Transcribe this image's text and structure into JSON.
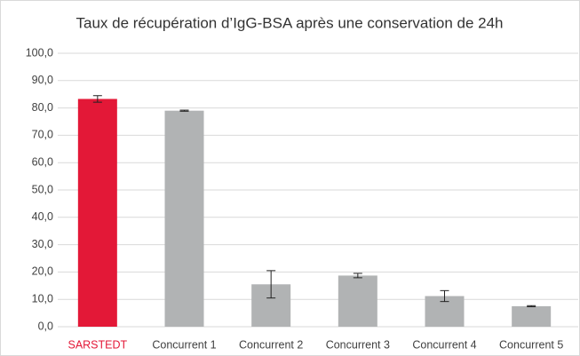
{
  "chart_data": {
    "type": "bar",
    "title": "Taux de récupération d’IgG-BSA après une conservation de 24h",
    "categories": [
      "SARSTEDT",
      "Concurrent 1",
      "Concurrent 2",
      "Concurrent 3",
      "Concurrent 4",
      "Concurrent 5"
    ],
    "values": [
      83.3,
      79.0,
      15.5,
      18.7,
      11.2,
      7.5
    ],
    "errors": [
      1.2,
      0.2,
      5.0,
      0.8,
      2.0,
      0.2
    ],
    "colors": [
      "#e31837",
      "#b1b3b4",
      "#b1b3b4",
      "#b1b3b4",
      "#b1b3b4",
      "#b1b3b4"
    ],
    "category_label_colors": [
      "#e31837",
      "#404040",
      "#404040",
      "#404040",
      "#404040",
      "#404040"
    ],
    "ylim": [
      0,
      100
    ],
    "yticks": [
      {
        "value": 0,
        "label": "0,0"
      },
      {
        "value": 10,
        "label": "10,0"
      },
      {
        "value": 20,
        "label": "20,0"
      },
      {
        "value": 30,
        "label": "30,0"
      },
      {
        "value": 40,
        "label": "40,0"
      },
      {
        "value": 50,
        "label": "50,0"
      },
      {
        "value": 60,
        "label": "60,0"
      },
      {
        "value": 70,
        "label": "70,0"
      },
      {
        "value": 80,
        "label": "80,0"
      },
      {
        "value": 90,
        "label": "90,0"
      },
      {
        "value": 100,
        "label": "100,0"
      }
    ],
    "grid": true
  }
}
